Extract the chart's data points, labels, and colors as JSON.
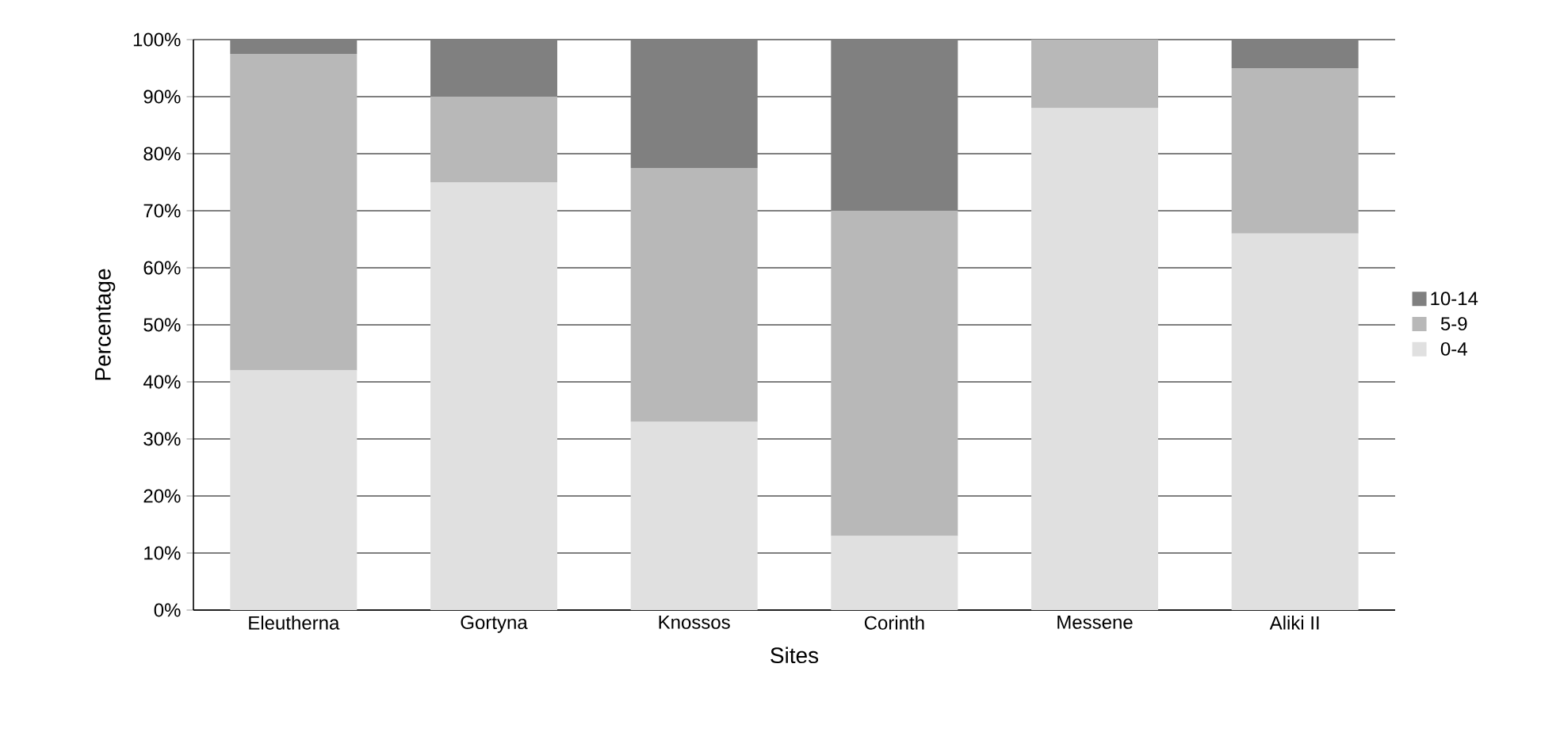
{
  "chart_data": {
    "type": "bar",
    "stacked": true,
    "xlabel": "Sites",
    "ylabel": "Percentage",
    "categories": [
      "Eleutherna",
      "Gortyna",
      "Knossos",
      "Corinth",
      "Messene",
      "Aliki II"
    ],
    "series": [
      {
        "name": "0-4",
        "color": "#e0e0e0",
        "values": [
          42,
          75,
          33,
          13,
          88,
          66
        ]
      },
      {
        "name": "5-9",
        "color": "#b8b8b8",
        "values": [
          55.5,
          15,
          44.5,
          57,
          12,
          29
        ]
      },
      {
        "name": "10-14",
        "color": "#808080",
        "values": [
          2.5,
          10,
          22.5,
          30,
          0,
          5
        ]
      }
    ],
    "ylim": [
      0,
      100
    ],
    "yticks": [
      {
        "value": 0,
        "label": "0%"
      },
      {
        "value": 10,
        "label": "10%"
      },
      {
        "value": 20,
        "label": "20%"
      },
      {
        "value": 30,
        "label": "30%"
      },
      {
        "value": 40,
        "label": "40%"
      },
      {
        "value": 50,
        "label": "50%"
      },
      {
        "value": 60,
        "label": "60%"
      },
      {
        "value": 70,
        "label": "70%"
      },
      {
        "value": 80,
        "label": "80%"
      },
      {
        "value": 90,
        "label": "90%"
      },
      {
        "value": 100,
        "label": "100%"
      }
    ],
    "grid": "y",
    "legend": "right"
  }
}
